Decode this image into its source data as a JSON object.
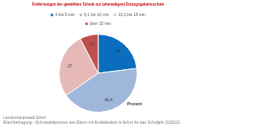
{
  "chart_data": {
    "type": "pie",
    "title": "Entfernungen der gewählten Schule zur (ehemaligen) Einzugsgebietsschule",
    "categories": [
      "0 bis 5 min",
      "5,1 bis 10 min",
      "10,1 bis 15 min",
      "über 15 min"
    ],
    "values": [
      23,
      42.4,
      27,
      7.6
    ],
    "value_labels": [
      "23",
      "42,4",
      "27",
      "7,6"
    ],
    "colors": [
      "#0b6dbd",
      "#9fb7db",
      "#e6b9b8",
      "#c0504d"
    ],
    "data_labels": true,
    "legend": "top",
    "annotations": [
      "Prozent"
    ],
    "footnotes": [
      "Landeshauptstadt Erfurt",
      "Elternbefragung - Schulwahlprozess von Eltern mit Erstklässlern in Erfurt für das Schuljahr 2020/21"
    ]
  }
}
